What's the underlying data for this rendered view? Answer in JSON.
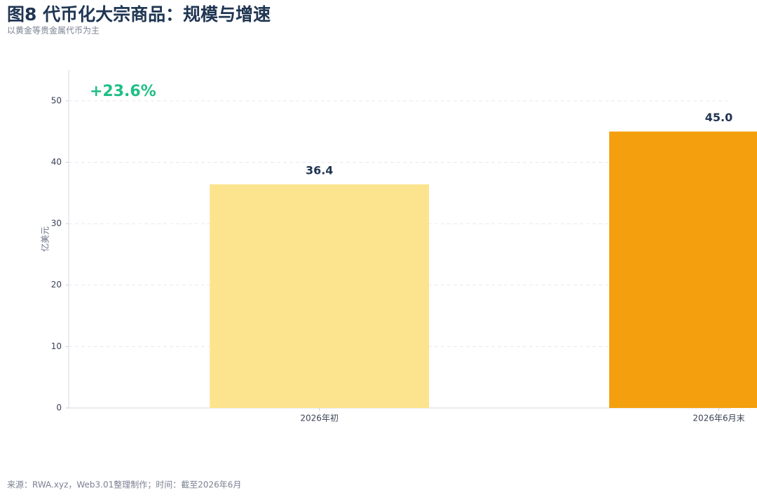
{
  "chart_data": {
    "type": "bar",
    "title": "图8 代币化大宗商品：规模与增速",
    "subtitle": "以黄金等贵金属代币为主",
    "y_label": "亿美元",
    "annotation": "+23.6%",
    "source": "来源：RWA.xyz，Web3.01整理制作；时间：截至2026年6月",
    "categories": [
      "2026年初",
      "2026年6月末"
    ],
    "values": [
      36.4,
      45
    ],
    "value_labels": [
      "36.4",
      "45.0"
    ],
    "colors": [
      "#fce38d",
      "#f39f0e"
    ],
    "ylim": [
      0,
      55
    ],
    "yticks": [
      0,
      10,
      20,
      30,
      40,
      50
    ],
    "grid": true
  }
}
